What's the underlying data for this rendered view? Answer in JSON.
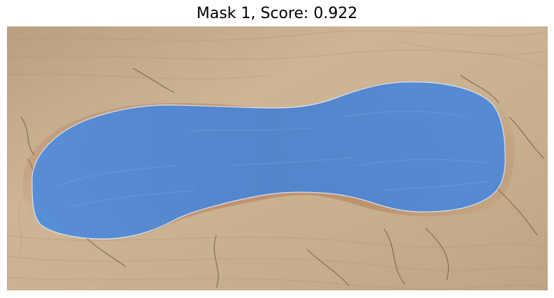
{
  "figure": {
    "title": "Mask 1, Score: 0.922"
  },
  "image": {
    "subject": "skin-wound-photo",
    "skin_color": "#c9b194",
    "skin_shadow_color": "#a88c6e",
    "wound_edge_color": "#b06a45",
    "mask_color": "#4a86d8",
    "mask_outline_color": "#e8eef7"
  }
}
